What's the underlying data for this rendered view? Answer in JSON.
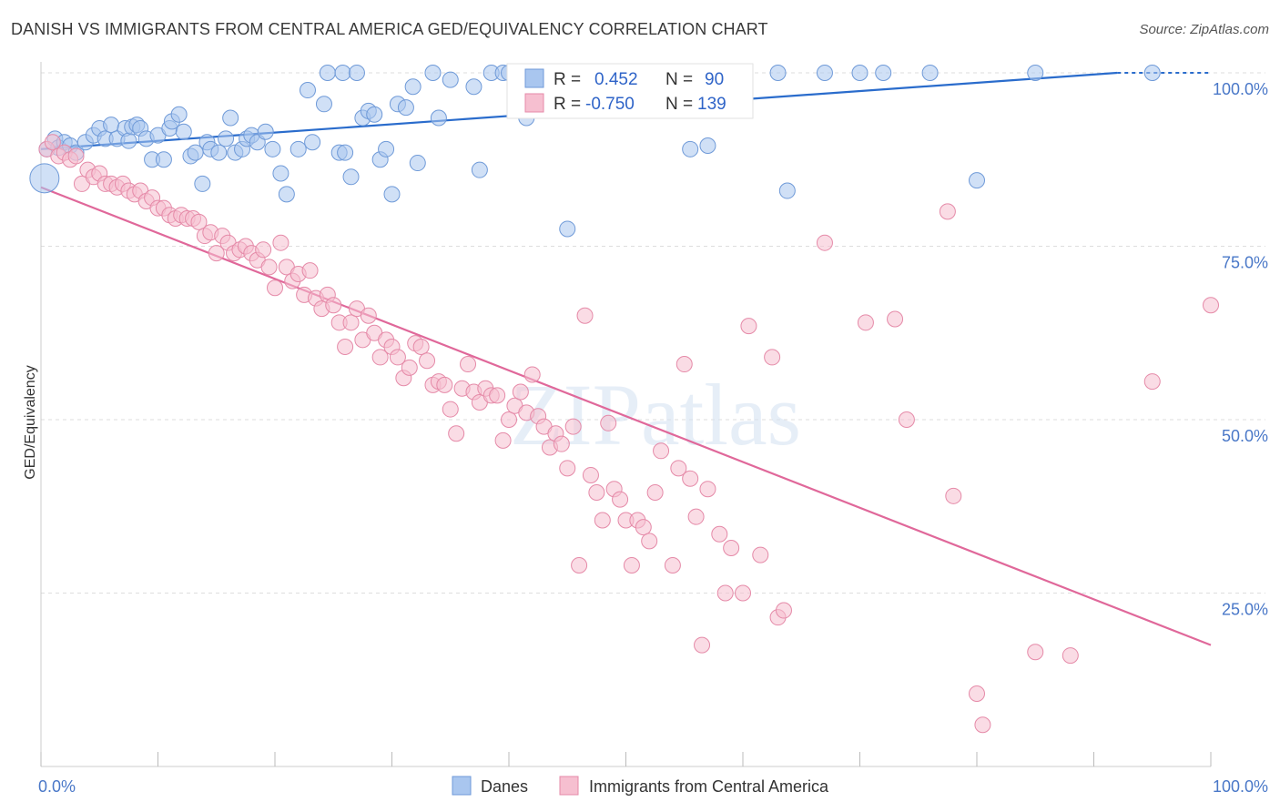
{
  "title": "DANISH VS IMMIGRANTS FROM CENTRAL AMERICA GED/EQUIVALENCY CORRELATION CHART",
  "source": "Source: ZipAtlas.com",
  "watermark": "ZIPatlas",
  "colors": {
    "blue_fill": "#a9c6ef",
    "blue_stroke": "#6f9ad8",
    "blue_line": "#2a6ccc",
    "pink_fill": "#f6bfd0",
    "pink_stroke": "#e58aa8",
    "pink_line": "#e0689a",
    "tick_text": "#4a78c8",
    "grid": "#dddddd"
  },
  "legend": {
    "row1": {
      "r_label": "R = ",
      "r_value": "0.452",
      "n_label": "N = ",
      "n_value": "90"
    },
    "row2": {
      "r_label": "R = ",
      "r_value": "-0.750",
      "n_label": "N = ",
      "n_value": "139"
    }
  },
  "bottom_legend": {
    "series1": "Danes",
    "series2": "Immigrants from Central America"
  },
  "chart_data": {
    "type": "scatter",
    "title": "DANISH VS IMMIGRANTS FROM CENTRAL AMERICA GED/EQUIVALENCY CORRELATION CHART",
    "xlabel": "",
    "ylabel": "GED/Equivalency",
    "xlim": [
      0,
      100
    ],
    "ylim": [
      0,
      100
    ],
    "x_tick_labels": [
      "0.0%",
      "100.0%"
    ],
    "y_tick_labels": [
      "25.0%",
      "50.0%",
      "75.0%",
      "100.0%"
    ],
    "y_ticks": [
      25,
      50,
      75,
      100
    ],
    "grid": true,
    "series": [
      {
        "name": "Danes",
        "R": 0.452,
        "N": 90,
        "trend": {
          "x": [
            0,
            92
          ],
          "y": [
            89.0,
            100.0
          ]
        },
        "points": [
          [
            0.3,
            84.8
          ],
          [
            0.5,
            89
          ],
          [
            1.2,
            90.5
          ],
          [
            1.5,
            89.2
          ],
          [
            2,
            90
          ],
          [
            2.5,
            89.5
          ],
          [
            3,
            88.5
          ],
          [
            3.8,
            90
          ],
          [
            4.5,
            91
          ],
          [
            5,
            92
          ],
          [
            5.5,
            90.5
          ],
          [
            6,
            92.5
          ],
          [
            6.5,
            90.5
          ],
          [
            7.2,
            92
          ],
          [
            7.5,
            90.2
          ],
          [
            7.8,
            92.2
          ],
          [
            8.2,
            92.5
          ],
          [
            8.5,
            92
          ],
          [
            9,
            90.5
          ],
          [
            9.5,
            87.5
          ],
          [
            10,
            91
          ],
          [
            10.5,
            87.5
          ],
          [
            11,
            92
          ],
          [
            11.2,
            93
          ],
          [
            11.8,
            94
          ],
          [
            12.2,
            91.5
          ],
          [
            12.8,
            88
          ],
          [
            13.2,
            88.5
          ],
          [
            13.8,
            84
          ],
          [
            14.2,
            90
          ],
          [
            14.5,
            89
          ],
          [
            15.2,
            88.5
          ],
          [
            15.8,
            90.5
          ],
          [
            16.2,
            93.5
          ],
          [
            16.6,
            88.5
          ],
          [
            17.2,
            89
          ],
          [
            17.6,
            90.5
          ],
          [
            18,
            91
          ],
          [
            18.5,
            90
          ],
          [
            19.2,
            91.5
          ],
          [
            19.8,
            89
          ],
          [
            20.5,
            85.5
          ],
          [
            21,
            82.5
          ],
          [
            22,
            89
          ],
          [
            22.8,
            97.5
          ],
          [
            23.2,
            90
          ],
          [
            24.2,
            95.5
          ],
          [
            24.5,
            100
          ],
          [
            25.5,
            88.5
          ],
          [
            25.8,
            100
          ],
          [
            26,
            88.5
          ],
          [
            26.5,
            85
          ],
          [
            27,
            100
          ],
          [
            27.5,
            93.5
          ],
          [
            28,
            94.5
          ],
          [
            28.5,
            94
          ],
          [
            29,
            87.5
          ],
          [
            29.5,
            89
          ],
          [
            30,
            82.5
          ],
          [
            30.5,
            95.5
          ],
          [
            31.2,
            95
          ],
          [
            31.8,
            98
          ],
          [
            32.2,
            87
          ],
          [
            33.5,
            100
          ],
          [
            34,
            93.5
          ],
          [
            35,
            99
          ],
          [
            37,
            98
          ],
          [
            37.5,
            86
          ],
          [
            38.5,
            100
          ],
          [
            39.5,
            100
          ],
          [
            40,
            100
          ],
          [
            41.5,
            93.5
          ],
          [
            42,
            100
          ],
          [
            44,
            100
          ],
          [
            44.8,
            97
          ],
          [
            45.5,
            100
          ],
          [
            48,
            100
          ],
          [
            55,
            100
          ],
          [
            55.5,
            89
          ],
          [
            57,
            89.5
          ],
          [
            60,
            100
          ],
          [
            63,
            100
          ],
          [
            67,
            100
          ],
          [
            63.8,
            83
          ],
          [
            70,
            100
          ],
          [
            72,
            100
          ],
          [
            76,
            100
          ],
          [
            80,
            84.5
          ],
          [
            85,
            100
          ],
          [
            95,
            100
          ],
          [
            45,
            77.5
          ]
        ]
      },
      {
        "name": "Immigrants from Central America",
        "R": -0.75,
        "N": 139,
        "trend": {
          "x": [
            0,
            100
          ],
          "y": [
            83.5,
            17.5
          ]
        },
        "points": [
          [
            0.5,
            89
          ],
          [
            1,
            90
          ],
          [
            1.5,
            88
          ],
          [
            2,
            88.5
          ],
          [
            2.5,
            87.5
          ],
          [
            3,
            88
          ],
          [
            3.5,
            84
          ],
          [
            4,
            86
          ],
          [
            4.5,
            85
          ],
          [
            5,
            85.5
          ],
          [
            5.5,
            84
          ],
          [
            6,
            84
          ],
          [
            6.5,
            83.5
          ],
          [
            7,
            84
          ],
          [
            7.5,
            83
          ],
          [
            8,
            82.5
          ],
          [
            8.5,
            83
          ],
          [
            9,
            81.5
          ],
          [
            9.5,
            82
          ],
          [
            10,
            80.5
          ],
          [
            10.5,
            80.5
          ],
          [
            11,
            79.5
          ],
          [
            11.5,
            79
          ],
          [
            12,
            79.5
          ],
          [
            12.5,
            79
          ],
          [
            13,
            79
          ],
          [
            13.5,
            78.5
          ],
          [
            14,
            76.5
          ],
          [
            14.5,
            77
          ],
          [
            15,
            74
          ],
          [
            15.5,
            76.5
          ],
          [
            16,
            75.5
          ],
          [
            16.5,
            74
          ],
          [
            17,
            74.5
          ],
          [
            17.5,
            75
          ],
          [
            18,
            74
          ],
          [
            18.5,
            73
          ],
          [
            19,
            74.5
          ],
          [
            19.5,
            72
          ],
          [
            20,
            69
          ],
          [
            20.5,
            75.5
          ],
          [
            21,
            72
          ],
          [
            21.5,
            70
          ],
          [
            22,
            71
          ],
          [
            22.5,
            68
          ],
          [
            23,
            71.5
          ],
          [
            23.5,
            67.5
          ],
          [
            24,
            66
          ],
          [
            24.5,
            68
          ],
          [
            25,
            66.5
          ],
          [
            25.5,
            64
          ],
          [
            26,
            60.5
          ],
          [
            26.5,
            64
          ],
          [
            27,
            66
          ],
          [
            27.5,
            61.5
          ],
          [
            28,
            65
          ],
          [
            28.5,
            62.5
          ],
          [
            29,
            59
          ],
          [
            29.5,
            61.5
          ],
          [
            30,
            60.5
          ],
          [
            30.5,
            59
          ],
          [
            31,
            56
          ],
          [
            31.5,
            57.5
          ],
          [
            32,
            61
          ],
          [
            32.5,
            60.5
          ],
          [
            33,
            58.5
          ],
          [
            33.5,
            55
          ],
          [
            34,
            55.5
          ],
          [
            34.5,
            55
          ],
          [
            35,
            51.5
          ],
          [
            35.5,
            48
          ],
          [
            36,
            54.5
          ],
          [
            36.5,
            58
          ],
          [
            37,
            54
          ],
          [
            37.5,
            52.5
          ],
          [
            38,
            54.5
          ],
          [
            38.5,
            53.5
          ],
          [
            39,
            53.5
          ],
          [
            39.5,
            47
          ],
          [
            40,
            50
          ],
          [
            40.5,
            52
          ],
          [
            41,
            54
          ],
          [
            41.5,
            51
          ],
          [
            42,
            56.5
          ],
          [
            42.5,
            50.5
          ],
          [
            43,
            49
          ],
          [
            43.5,
            46
          ],
          [
            44,
            48
          ],
          [
            44.5,
            46.5
          ],
          [
            45,
            43
          ],
          [
            45.5,
            49
          ],
          [
            46,
            29
          ],
          [
            46.5,
            65
          ],
          [
            47,
            42
          ],
          [
            47.5,
            39.5
          ],
          [
            48,
            35.5
          ],
          [
            48.5,
            49.5
          ],
          [
            49,
            40
          ],
          [
            49.5,
            38.5
          ],
          [
            50,
            35.5
          ],
          [
            50.5,
            29
          ],
          [
            51,
            35.5
          ],
          [
            51.5,
            34.5
          ],
          [
            52,
            32.5
          ],
          [
            52.5,
            39.5
          ],
          [
            53,
            45.5
          ],
          [
            54,
            29
          ],
          [
            54.5,
            43
          ],
          [
            55,
            58
          ],
          [
            55.5,
            41.5
          ],
          [
            56,
            36
          ],
          [
            56.5,
            17.5
          ],
          [
            57,
            40
          ],
          [
            58,
            33.5
          ],
          [
            58.5,
            25
          ],
          [
            59,
            31.5
          ],
          [
            60,
            25
          ],
          [
            60.5,
            63.5
          ],
          [
            61.5,
            30.5
          ],
          [
            62.5,
            59
          ],
          [
            63,
            21.5
          ],
          [
            63.5,
            22.5
          ],
          [
            67,
            75.5
          ],
          [
            70.5,
            64
          ],
          [
            73,
            64.5
          ],
          [
            74,
            50
          ],
          [
            77.5,
            80
          ],
          [
            78,
            39
          ],
          [
            80,
            10.5
          ],
          [
            80.5,
            6
          ],
          [
            85,
            16.5
          ],
          [
            88,
            16
          ],
          [
            95,
            55.5
          ],
          [
            100,
            66.5
          ]
        ]
      }
    ]
  }
}
